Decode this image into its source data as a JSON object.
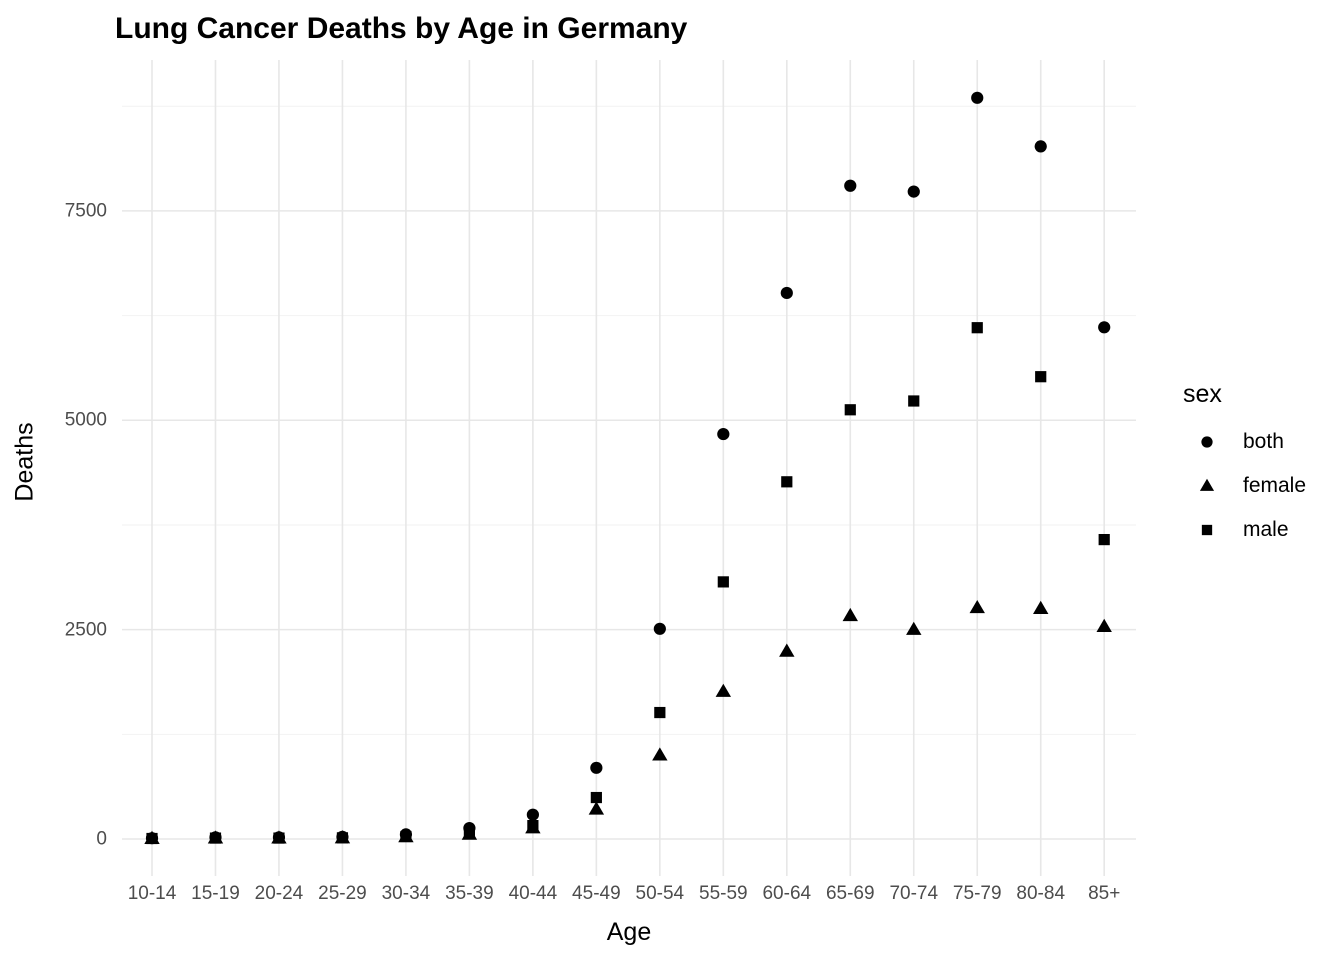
{
  "title": "Lung Cancer Deaths by Age in Germany",
  "legend": {
    "title": "sex",
    "items": [
      {
        "label": "both",
        "marker": "circle"
      },
      {
        "label": "female",
        "marker": "triangle"
      },
      {
        "label": "male",
        "marker": "square"
      }
    ]
  },
  "chart_data": {
    "type": "scatter",
    "title": "Lung Cancer Deaths by Age in Germany",
    "xlabel": "Age",
    "ylabel": "Deaths",
    "categories": [
      "10-14",
      "15-19",
      "20-24",
      "25-29",
      "30-34",
      "35-39",
      "40-44",
      "45-49",
      "50-54",
      "55-59",
      "60-64",
      "65-69",
      "70-74",
      "75-79",
      "80-84",
      "85+"
    ],
    "series": [
      {
        "name": "both",
        "marker": "circle",
        "values": [
          10,
          20,
          20,
          25,
          55,
          130,
          290,
          850,
          2510,
          4835,
          6520,
          7800,
          7730,
          8850,
          8270,
          6110
        ]
      },
      {
        "name": "female",
        "marker": "triangle",
        "values": [
          4,
          9,
          9,
          11,
          25,
          55,
          130,
          355,
          1000,
          1760,
          2240,
          2665,
          2500,
          2760,
          2750,
          2535
        ]
      },
      {
        "name": "male",
        "marker": "square",
        "values": [
          6,
          11,
          11,
          14,
          30,
          75,
          160,
          495,
          1510,
          3070,
          4265,
          5125,
          5230,
          6105,
          5520,
          3575
        ]
      }
    ],
    "y_ticks": [
      0,
      2500,
      5000,
      7500
    ],
    "y_minor_ticks": [
      1250,
      3750,
      6250,
      8750
    ],
    "ylim": [
      0,
      9300
    ],
    "grid": true,
    "legend_position": "right",
    "colors": {
      "points": "#000000",
      "grid_major": "#e7e7e7",
      "grid_minor": "#f2f2f2",
      "axis_text": "#4d4d4d",
      "text": "#000000",
      "background": "#ffffff"
    }
  }
}
